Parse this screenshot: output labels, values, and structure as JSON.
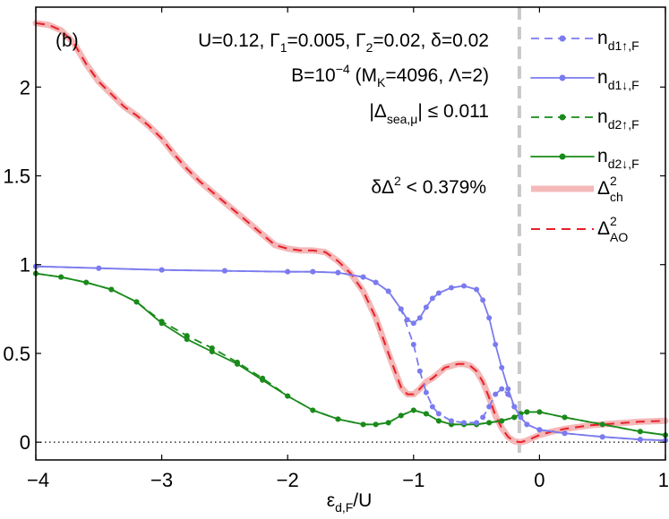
{
  "chart_data": {
    "type": "line",
    "panel_label": "(b)",
    "xlabel": "ε",
    "xlabel_sub": "d,F",
    "xlabel_tail": "/U",
    "xlim": [
      -4,
      1
    ],
    "ylim": [
      -0.1,
      2.45
    ],
    "x_ticks": [
      -4,
      -3,
      -2,
      -1,
      0,
      1
    ],
    "x_tick_labels": [
      "−4",
      "−3",
      "−2",
      "−1",
      "0",
      "1"
    ],
    "y_ticks": [
      0,
      0.5,
      1,
      1.5,
      2
    ],
    "y_tick_labels": [
      "0",
      "0.5",
      "1",
      "1.5",
      "2"
    ],
    "zero_line": "dotted",
    "vline_x": -0.16,
    "annotations": {
      "line1": "U=0.12, Γ1=0.005, Γ2=0.02, δ=0.02",
      "line2": "B=10−4 (MK=4096, Λ=2)",
      "line3": "|Δsea,μ| ≤ 0.011",
      "line4": "δΔ2 < 0.379%"
    },
    "legend_placement": "right",
    "series": [
      {
        "name": "n d1↑,F",
        "color": "#7b7bef",
        "style": "dashed-markers",
        "x": [
          -4.0,
          -3.5,
          -3.0,
          -2.5,
          -2.0,
          -1.8,
          -1.6,
          -1.4,
          -1.3,
          -1.2,
          -1.1,
          -1.0,
          -0.95,
          -0.9,
          -0.85,
          -0.8,
          -0.7,
          -0.6,
          -0.5,
          -0.45,
          -0.4,
          -0.35,
          -0.3,
          -0.25,
          -0.2,
          -0.15,
          -0.1,
          0.0,
          0.2,
          0.5,
          0.8,
          1.0
        ],
        "y": [
          0.99,
          0.98,
          0.97,
          0.965,
          0.96,
          0.96,
          0.955,
          0.93,
          0.9,
          0.85,
          0.75,
          0.55,
          0.4,
          0.28,
          0.2,
          0.16,
          0.12,
          0.11,
          0.11,
          0.14,
          0.2,
          0.27,
          0.3,
          0.27,
          0.2,
          0.14,
          0.1,
          0.07,
          0.05,
          0.03,
          0.015,
          0.01
        ]
      },
      {
        "name": "n d1↓,F",
        "color": "#7b7bef",
        "style": "solid-markers",
        "x": [
          -4.0,
          -3.5,
          -3.0,
          -2.5,
          -2.0,
          -1.8,
          -1.6,
          -1.4,
          -1.3,
          -1.2,
          -1.1,
          -1.05,
          -1.0,
          -0.95,
          -0.9,
          -0.85,
          -0.8,
          -0.7,
          -0.6,
          -0.5,
          -0.45,
          -0.4,
          -0.35,
          -0.3,
          -0.25,
          -0.2,
          -0.15,
          -0.1,
          0.0,
          0.2,
          0.5,
          0.8,
          1.0
        ],
        "y": [
          0.99,
          0.98,
          0.97,
          0.965,
          0.96,
          0.96,
          0.955,
          0.93,
          0.9,
          0.85,
          0.75,
          0.69,
          0.67,
          0.7,
          0.76,
          0.81,
          0.84,
          0.87,
          0.88,
          0.86,
          0.8,
          0.7,
          0.55,
          0.42,
          0.3,
          0.2,
          0.14,
          0.1,
          0.07,
          0.05,
          0.03,
          0.015,
          0.01
        ]
      },
      {
        "name": "n d2↑,F",
        "color": "#1a8a1a",
        "style": "dashed-markers",
        "x": [
          -4.0,
          -3.8,
          -3.6,
          -3.4,
          -3.2,
          -3.0,
          -2.8,
          -2.6,
          -2.4,
          -2.2,
          -2.0,
          -1.8,
          -1.6,
          -1.4,
          -1.3,
          -1.2,
          -1.1,
          -1.0,
          -0.9,
          -0.8,
          -0.7,
          -0.6,
          -0.5,
          -0.4,
          -0.3,
          -0.2,
          -0.15,
          -0.1,
          0.0,
          0.2,
          0.5,
          0.8,
          1.0
        ],
        "y": [
          0.95,
          0.93,
          0.9,
          0.86,
          0.79,
          0.68,
          0.6,
          0.53,
          0.45,
          0.36,
          0.26,
          0.18,
          0.13,
          0.1,
          0.1,
          0.11,
          0.15,
          0.18,
          0.16,
          0.12,
          0.1,
          0.1,
          0.1,
          0.11,
          0.12,
          0.14,
          0.16,
          0.17,
          0.17,
          0.14,
          0.1,
          0.06,
          0.04
        ]
      },
      {
        "name": "n d2↓,F",
        "color": "#1a8a1a",
        "style": "solid-markers",
        "x": [
          -4.0,
          -3.8,
          -3.6,
          -3.4,
          -3.2,
          -3.0,
          -2.8,
          -2.6,
          -2.4,
          -2.2,
          -2.0,
          -1.8,
          -1.6,
          -1.4,
          -1.3,
          -1.2,
          -1.1,
          -1.0,
          -0.9,
          -0.8,
          -0.7,
          -0.6,
          -0.5,
          -0.4,
          -0.3,
          -0.2,
          -0.15,
          -0.1,
          0.0,
          0.2,
          0.5,
          0.8,
          1.0
        ],
        "y": [
          0.95,
          0.93,
          0.9,
          0.86,
          0.79,
          0.67,
          0.58,
          0.51,
          0.44,
          0.35,
          0.26,
          0.18,
          0.13,
          0.1,
          0.1,
          0.11,
          0.15,
          0.18,
          0.16,
          0.12,
          0.1,
          0.1,
          0.1,
          0.11,
          0.12,
          0.14,
          0.16,
          0.17,
          0.17,
          0.14,
          0.1,
          0.06,
          0.04
        ]
      },
      {
        "name": "Δ ch 2",
        "color": "#f4b8b8",
        "style": "thick",
        "x": [
          -4.0,
          -3.9,
          -3.8,
          -3.7,
          -3.6,
          -3.5,
          -3.4,
          -3.3,
          -3.2,
          -3.1,
          -3.0,
          -2.9,
          -2.8,
          -2.7,
          -2.6,
          -2.5,
          -2.4,
          -2.3,
          -2.2,
          -2.1,
          -2.0,
          -1.9,
          -1.8,
          -1.7,
          -1.6,
          -1.5,
          -1.4,
          -1.3,
          -1.2,
          -1.1,
          -1.05,
          -1.0,
          -0.95,
          -0.9,
          -0.85,
          -0.8,
          -0.75,
          -0.7,
          -0.65,
          -0.6,
          -0.55,
          -0.5,
          -0.45,
          -0.4,
          -0.35,
          -0.3,
          -0.25,
          -0.2,
          -0.15,
          -0.1,
          -0.05,
          0.0,
          0.1,
          0.2,
          0.3,
          0.4,
          0.5,
          0.6,
          0.7,
          0.8,
          0.9,
          1.0
        ],
        "y": [
          2.36,
          2.35,
          2.32,
          2.25,
          2.13,
          2.03,
          1.96,
          1.89,
          1.84,
          1.78,
          1.71,
          1.62,
          1.54,
          1.47,
          1.41,
          1.35,
          1.29,
          1.23,
          1.17,
          1.11,
          1.09,
          1.08,
          1.08,
          1.07,
          1.02,
          0.95,
          0.85,
          0.7,
          0.5,
          0.31,
          0.27,
          0.27,
          0.3,
          0.34,
          0.36,
          0.39,
          0.42,
          0.43,
          0.44,
          0.44,
          0.43,
          0.4,
          0.34,
          0.25,
          0.15,
          0.08,
          0.03,
          0.005,
          0.0,
          0.01,
          0.025,
          0.04,
          0.06,
          0.075,
          0.085,
          0.095,
          0.1,
          0.105,
          0.11,
          0.115,
          0.118,
          0.12
        ]
      },
      {
        "name": "Δ AO 2",
        "color": "#e8202a",
        "style": "dashed",
        "x": [
          -4.0,
          -3.9,
          -3.8,
          -3.7,
          -3.6,
          -3.5,
          -3.4,
          -3.3,
          -3.2,
          -3.1,
          -3.0,
          -2.9,
          -2.8,
          -2.7,
          -2.6,
          -2.5,
          -2.4,
          -2.3,
          -2.2,
          -2.1,
          -2.0,
          -1.9,
          -1.8,
          -1.7,
          -1.6,
          -1.5,
          -1.4,
          -1.3,
          -1.2,
          -1.1,
          -1.05,
          -1.0,
          -0.95,
          -0.9,
          -0.85,
          -0.8,
          -0.75,
          -0.7,
          -0.65,
          -0.6,
          -0.55,
          -0.5,
          -0.45,
          -0.4,
          -0.35,
          -0.3,
          -0.25,
          -0.2,
          -0.15,
          -0.1,
          -0.05,
          0.0,
          0.1,
          0.2,
          0.3,
          0.4,
          0.5,
          0.6,
          0.7,
          0.8,
          0.9,
          1.0
        ],
        "y": [
          2.36,
          2.35,
          2.32,
          2.25,
          2.13,
          2.03,
          1.96,
          1.89,
          1.84,
          1.78,
          1.71,
          1.62,
          1.54,
          1.47,
          1.41,
          1.35,
          1.29,
          1.23,
          1.17,
          1.11,
          1.09,
          1.08,
          1.08,
          1.07,
          1.02,
          0.95,
          0.85,
          0.7,
          0.5,
          0.31,
          0.27,
          0.27,
          0.3,
          0.34,
          0.36,
          0.39,
          0.42,
          0.43,
          0.44,
          0.44,
          0.43,
          0.4,
          0.34,
          0.25,
          0.15,
          0.08,
          0.03,
          0.005,
          0.0,
          0.01,
          0.025,
          0.04,
          0.06,
          0.075,
          0.085,
          0.095,
          0.1,
          0.105,
          0.11,
          0.115,
          0.118,
          0.12
        ]
      }
    ]
  },
  "legend": [
    {
      "base": "n",
      "sub": "d1↑,F",
      "color": "#7b7bef",
      "style": "dashed-markers"
    },
    {
      "base": "n",
      "sub": "d1↓,F",
      "color": "#7b7bef",
      "style": "solid-markers"
    },
    {
      "base": "n",
      "sub": "d2↑,F",
      "color": "#1a8a1a",
      "style": "dashed-markers"
    },
    {
      "base": "n",
      "sub": "d2↓,F",
      "color": "#1a8a1a",
      "style": "solid-markers"
    },
    {
      "base": "Δ",
      "sub": "ch",
      "sup": "2",
      "color": "#f4b8b8",
      "style": "thick"
    },
    {
      "base": "Δ",
      "sub": "AO",
      "sup": "2",
      "color": "#e8202a",
      "style": "dashed"
    }
  ]
}
